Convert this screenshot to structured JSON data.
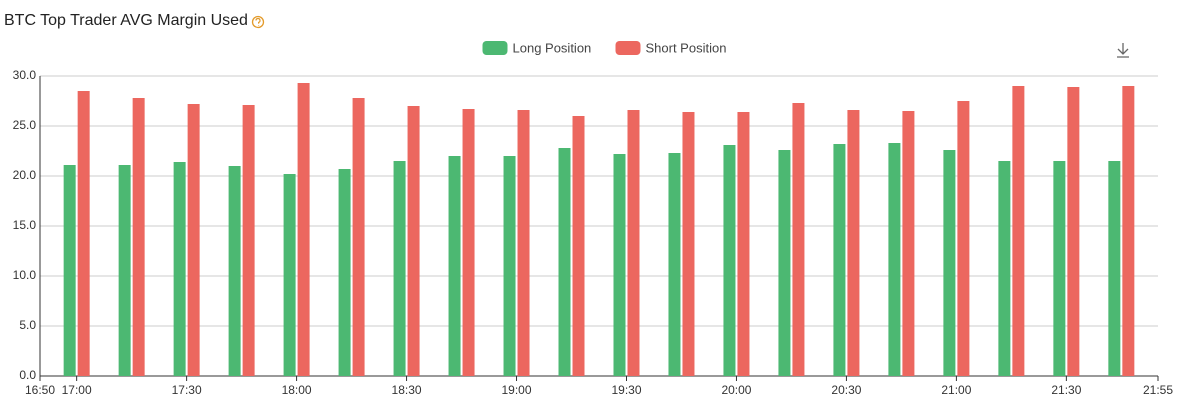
{
  "chart_data": {
    "type": "bar",
    "title": "BTC Top Trader AVG Margin Used",
    "x": [
      "17:00",
      "17:15",
      "17:30",
      "17:45",
      "18:00",
      "18:15",
      "18:30",
      "18:45",
      "19:00",
      "19:15",
      "19:30",
      "19:45",
      "20:00",
      "20:15",
      "20:30",
      "20:45",
      "21:00",
      "21:15",
      "21:30",
      "21:45"
    ],
    "series": [
      {
        "name": "Long Position",
        "color": "#4cb872",
        "values": [
          21.1,
          21.1,
          21.4,
          21.0,
          20.2,
          20.7,
          21.5,
          22.0,
          22.0,
          22.8,
          22.2,
          22.3,
          23.1,
          22.6,
          23.2,
          23.3,
          22.6,
          21.5,
          21.5,
          21.5
        ]
      },
      {
        "name": "Short Position",
        "color": "#ec675f",
        "values": [
          28.5,
          27.8,
          27.2,
          27.1,
          29.3,
          27.8,
          27.0,
          26.7,
          26.6,
          26.0,
          26.6,
          26.4,
          26.4,
          27.3,
          26.6,
          26.5,
          27.5,
          29.0,
          28.9,
          29.0
        ]
      }
    ],
    "xlim": [
      "16:50",
      "21:55"
    ],
    "xticks": [
      "16:50",
      "17:00",
      "17:30",
      "18:00",
      "18:30",
      "19:00",
      "19:30",
      "20:00",
      "20:30",
      "21:00",
      "21:30",
      "21:55"
    ],
    "ylim": [
      0,
      30
    ],
    "yticks": [
      {
        "value": 0,
        "label": "0.0"
      },
      {
        "value": 5,
        "label": "5.0"
      },
      {
        "value": 10,
        "label": "10.0"
      },
      {
        "value": 15,
        "label": "15.0"
      },
      {
        "value": 20,
        "label": "20.0"
      },
      {
        "value": 25,
        "label": "25.0"
      },
      {
        "value": 30,
        "label": "30.0"
      }
    ],
    "grid": true,
    "legend": "top"
  }
}
